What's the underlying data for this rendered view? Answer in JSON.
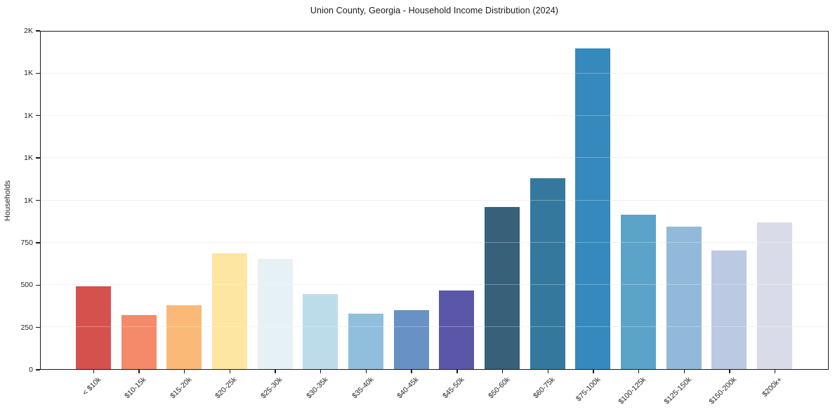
{
  "chart_data": {
    "type": "bar",
    "title": "Union County, Georgia - Household Income Distribution (2024)",
    "xlabel": "",
    "ylabel": "Households",
    "categories": [
      "< $10k",
      "$10-15k",
      "$15-20k",
      "$20-25k",
      "$25-30k",
      "$30-35k",
      "$35-40k",
      "$40-45k",
      "$45-50k",
      "$50-60k",
      "$60-75k",
      "$75-100k",
      "$100-125k",
      "$125-150k",
      "$150-200k",
      "$200k+"
    ],
    "values": [
      490,
      320,
      378,
      688,
      654,
      444,
      328,
      350,
      465,
      962,
      1132,
      1900,
      915,
      846,
      701,
      868
    ],
    "bar_colors": [
      "#d5514e",
      "#f48a69",
      "#fbb978",
      "#fde5a2",
      "#e6f1f5",
      "#bddcea",
      "#90bedd",
      "#6892c5",
      "#5a57a9",
      "#376079",
      "#35789e",
      "#3689bd",
      "#5ca3c9",
      "#92b9d9",
      "#bcc9e2",
      "#dadbe9"
    ],
    "ylim": [
      0,
      2000
    ],
    "yticks": [
      {
        "value": 0,
        "label": "0"
      },
      {
        "value": 250,
        "label": "250"
      },
      {
        "value": 500,
        "label": "500"
      },
      {
        "value": 750,
        "label": "750"
      },
      {
        "value": 1000,
        "label": "1K"
      },
      {
        "value": 1250,
        "label": "1K"
      },
      {
        "value": 1500,
        "label": "1K"
      },
      {
        "value": 1750,
        "label": "1K"
      },
      {
        "value": 2000,
        "label": "2K"
      }
    ],
    "grid": "horizontal",
    "legend": "none"
  },
  "colors": {
    "axis": "#1a1a1a",
    "grid": "#ececec",
    "text": "#262626",
    "background": "#ffffff"
  }
}
